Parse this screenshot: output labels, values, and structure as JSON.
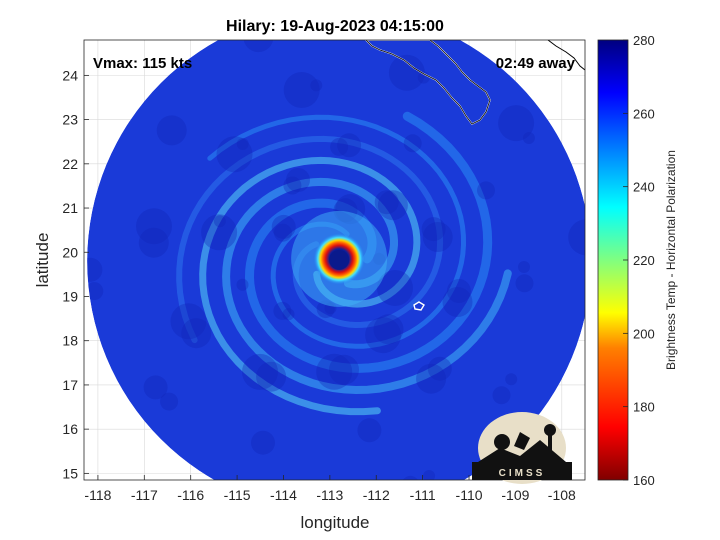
{
  "chart_data": {
    "type": "heatmap",
    "title": "Hilary: 19-Aug-2023 04:15:00",
    "xlabel": "longitude",
    "ylabel": "latitude",
    "xlim": [
      -118.3,
      -107.5
    ],
    "ylim": [
      14.85,
      24.8
    ],
    "xticks": [
      -118,
      -117,
      -116,
      -115,
      -114,
      -113,
      -112,
      -111,
      -110,
      -109,
      -108
    ],
    "yticks": [
      15,
      16,
      17,
      18,
      19,
      20,
      21,
      22,
      23,
      24
    ],
    "grid": true,
    "annotations": {
      "vmax": "Vmax: 115 kts",
      "time_away": "02:49 away",
      "logo_text": "CIMSS"
    },
    "colorbar": {
      "label": "Brightness Temp - Horizontal Polarization",
      "range": [
        160,
        280
      ],
      "ticks": [
        160,
        180,
        200,
        220,
        240,
        260,
        280
      ],
      "colormap": "jet"
    },
    "storm_center": {
      "lon": -112.8,
      "lat": 19.85
    },
    "swath_center": {
      "lon": -112.8,
      "lat": 19.8
    },
    "colors": {
      "background_field": "#1a3ad8",
      "eye": "#0a1a8c",
      "eyewall": "#e01010",
      "coastline": "#ffffff"
    }
  }
}
